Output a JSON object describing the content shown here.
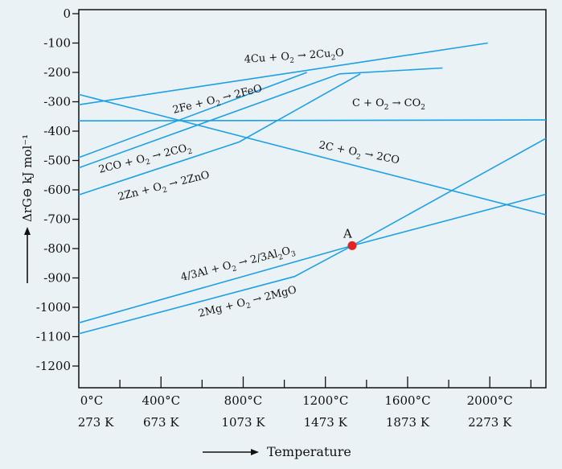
{
  "chart_data": {
    "type": "line",
    "title": "",
    "xlabel": "Temperature",
    "ylabel": "ΔrG⊖ kJ mol⁻¹",
    "xlim": [
      0,
      2273
    ],
    "ylim": [
      -1300,
      0
    ],
    "y_ticks": [
      "0",
      "-100",
      "-200",
      "-300",
      "-400",
      "-500",
      "-600",
      "-700",
      "-800",
      "-900",
      "-1000",
      "-1100",
      "-1200"
    ],
    "y_tick_values": [
      0,
      -100,
      -200,
      -300,
      -400,
      -500,
      -600,
      -700,
      -800,
      -900,
      -1000,
      -1100,
      -1200
    ],
    "x_ticks": [
      {
        "value": 0,
        "celsius": "0°C",
        "kelvin": "273 K"
      },
      {
        "value": 400,
        "celsius": "400°C",
        "kelvin": "673 K"
      },
      {
        "value": 800,
        "celsius": "800°C",
        "kelvin": "1073 K"
      },
      {
        "value": 1200,
        "celsius": "1200°C",
        "kelvin": "1473 K"
      },
      {
        "value": 1600,
        "celsius": "1600°C",
        "kelvin": "1873 K"
      },
      {
        "value": 2000,
        "celsius": "2000°C",
        "kelvin": "2273 K"
      }
    ],
    "series": [
      {
        "name": "4Cu + O2 → 2Cu2O",
        "points": [
          [
            0,
            -310
          ],
          [
            1990,
            -100
          ]
        ]
      },
      {
        "name": "2Fe + O2 → 2FeO",
        "points": [
          [
            0,
            -490
          ],
          [
            1110,
            -200
          ]
        ]
      },
      {
        "name": "C + O2 → CO2",
        "points": [
          [
            0,
            -365
          ],
          [
            2273,
            -362
          ]
        ]
      },
      {
        "name": "2C + O2 → 2CO",
        "points": [
          [
            0,
            -275
          ],
          [
            2273,
            -685
          ]
        ]
      },
      {
        "name": "2CO + O2 → 2CO2",
        "points": [
          [
            0,
            -525
          ],
          [
            1270,
            -205
          ],
          [
            1770,
            -185
          ]
        ]
      },
      {
        "name": "2Zn + O2 → 2ZnO",
        "points": [
          [
            0,
            -617
          ],
          [
            780,
            -437
          ],
          [
            1370,
            -205
          ]
        ]
      },
      {
        "name": "4/3Al + O2 → 2/3Al2O3",
        "points": [
          [
            0,
            -1053
          ],
          [
            1330,
            -790
          ],
          [
            2273,
            -615
          ]
        ]
      },
      {
        "name": "2Mg + O2 → 2MgO",
        "points": [
          [
            0,
            -1090
          ],
          [
            1050,
            -895
          ],
          [
            1330,
            -790
          ],
          [
            2273,
            -425
          ]
        ]
      }
    ],
    "annotations": [
      {
        "text": "A",
        "x": 1330,
        "y": -790
      }
    ],
    "line_labels": {
      "cu": {
        "main": "4Cu + O",
        "sub1": "2",
        "arrow": " → 2Cu",
        "sub2": "2",
        "tail": "O"
      },
      "fe": {
        "main": "2Fe + O",
        "sub1": "2",
        "arrow": " → 2FeO"
      },
      "c_co2": {
        "main": "C + O",
        "sub1": "2",
        "arrow": " → CO",
        "sub2": "2"
      },
      "c_co": {
        "main": "2C + O",
        "sub1": "2",
        "arrow": " → 2CO"
      },
      "co_co2": {
        "main": "2CO + O",
        "sub1": "2",
        "arrow": " → 2CO",
        "sub2": "2"
      },
      "zn": {
        "main": "2Zn + O",
        "sub1": "2",
        "arrow": " → 2ZnO"
      },
      "al": {
        "main": "4/3Al + O",
        "sub1": "2",
        "arrow": "  → 2/3Al",
        "sub2": "2",
        "tail": "O",
        "sub3": "3"
      },
      "mg": {
        "main": "2Mg + O",
        "sub1": "2",
        "arrow": "  → 2MgO"
      }
    },
    "colors": {
      "line": "#1da0e3",
      "point": "#e02424",
      "axis": "#111111",
      "background": "#eaf2f6"
    }
  }
}
